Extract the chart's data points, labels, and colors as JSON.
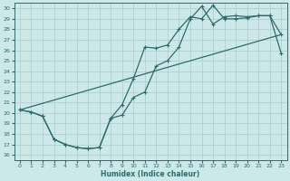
{
  "xlabel": "Humidex (Indice chaleur)",
  "bg_color": "#cce8e8",
  "line_color": "#2e6b6b",
  "grid_color": "#aacccc",
  "xlim": [
    -0.5,
    23.5
  ],
  "ylim": [
    15.5,
    30.5
  ],
  "xticks": [
    0,
    1,
    2,
    3,
    4,
    5,
    6,
    7,
    8,
    9,
    10,
    11,
    12,
    13,
    14,
    15,
    16,
    17,
    18,
    19,
    20,
    21,
    22,
    23
  ],
  "yticks": [
    16,
    17,
    18,
    19,
    20,
    21,
    22,
    23,
    24,
    25,
    26,
    27,
    28,
    29,
    30
  ],
  "line1_x": [
    0,
    1,
    2,
    3,
    4,
    5,
    6,
    7,
    8,
    9,
    10,
    11,
    12,
    13,
    14,
    15,
    16,
    17,
    18,
    19,
    20,
    21,
    22,
    23
  ],
  "line1_y": [
    20.3,
    20.1,
    19.7,
    17.5,
    17.0,
    16.7,
    16.6,
    16.7,
    19.5,
    19.8,
    21.5,
    22.0,
    24.5,
    25.0,
    26.3,
    29.0,
    30.2,
    28.5,
    29.2,
    29.3,
    29.2,
    29.3,
    29.3,
    25.7
  ],
  "line2_x": [
    0,
    1,
    2,
    3,
    4,
    5,
    6,
    7,
    8,
    9,
    10,
    11,
    12,
    13,
    14,
    15,
    16,
    17,
    18,
    19,
    20,
    21,
    22,
    23
  ],
  "line2_y": [
    20.3,
    20.1,
    19.7,
    17.5,
    17.0,
    16.7,
    16.6,
    16.7,
    19.5,
    20.8,
    23.3,
    26.3,
    26.2,
    26.5,
    28.0,
    29.2,
    29.0,
    30.3,
    29.0,
    29.0,
    29.1,
    29.3,
    29.3,
    27.5
  ],
  "line3_x": [
    0,
    23
  ],
  "line3_y": [
    20.3,
    27.5
  ]
}
